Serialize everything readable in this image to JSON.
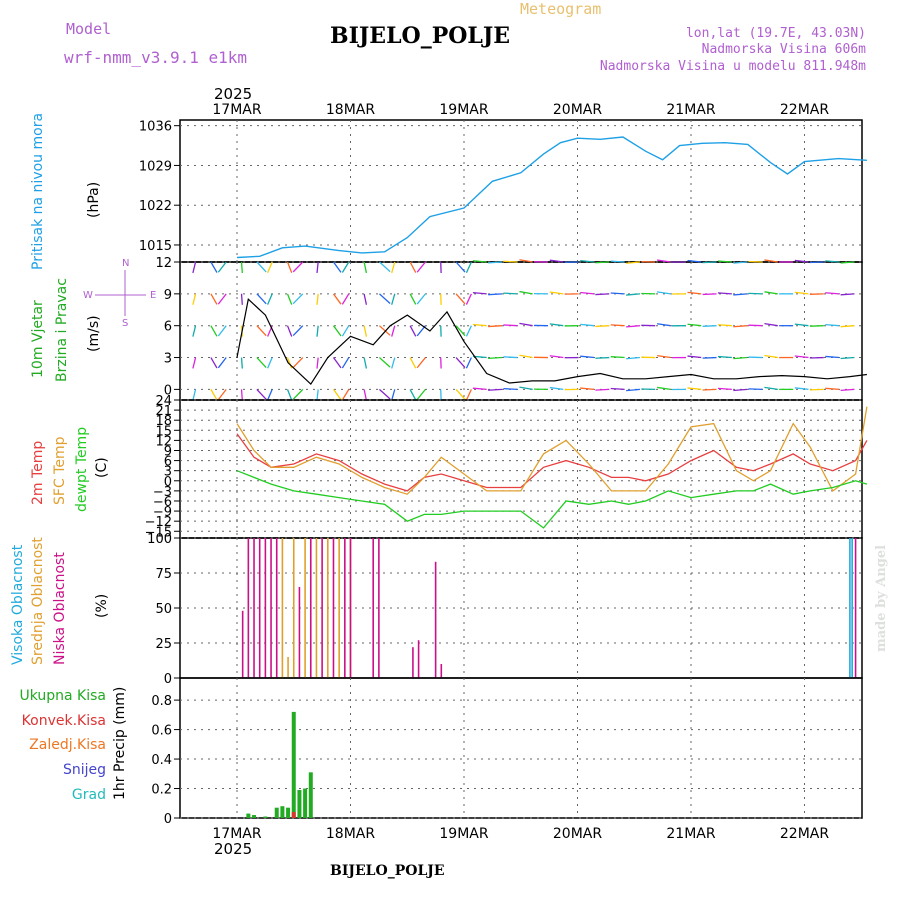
{
  "header": {
    "model_label": "Model",
    "model_name": "wrf-nmm_v3.9.1 e1km",
    "meteogram_label": "Meteogram",
    "title": "BIJELO_POLJE",
    "lonlat": "lon,lat (19.7E, 43.03N)",
    "elevation": "Nadmorska Visina 606m",
    "model_elevation": "Nadmorska Visina u modelu 811.948m",
    "footer_title": "BIJELO_POLJE",
    "watermark": "made by Angel"
  },
  "colors": {
    "pressure": "#1ea0e6",
    "temp2m": "#e84040",
    "sfc_temp": "#e0a030",
    "dewpoint": "#22cc22",
    "high_cloud": "#22aadd",
    "mid_cloud": "#e0a030",
    "low_cloud": "#cc1188",
    "total_precip": "#22aa22",
    "conv_precip": "#dd3333",
    "frz_precip": "#ee7722",
    "snow": "#4444cc",
    "hail": "#22bbbb",
    "wind_speed": "#000000",
    "gust": "#e03030"
  },
  "time_axis": {
    "year": "2025",
    "days": [
      "17MAR",
      "18MAR",
      "19MAR",
      "20MAR",
      "21MAR",
      "22MAR"
    ]
  },
  "panels": {
    "pressure": {
      "label": "Pritisak na nivou mora",
      "unit": "(hPa)"
    },
    "wind": {
      "label1": "10m Vjetar",
      "label2": "Brzina i Pravac",
      "unit": "(m/s)",
      "compass": {
        "n": "N",
        "w": "W",
        "e": "E",
        "s": "S"
      }
    },
    "temp": {
      "label1": "2m Temp",
      "label2": "SFC Temp",
      "label3": "dewpt Temp",
      "unit": "(C)"
    },
    "cloud": {
      "label1": "Visoka Oblacnost",
      "label2": "Srednja Oblacnost",
      "label3": "Niska Oblacnost",
      "unit": "(%)"
    },
    "precip": {
      "legend": [
        "Ukupna Kisa",
        "Konvek.Kisa",
        "Zaledj.Kisa",
        "Snijeg",
        "Grad"
      ],
      "unit": "1hr Precip (mm)"
    }
  },
  "chart_data": [
    {
      "type": "line",
      "name": "pressure",
      "x_days": [
        0,
        0.2,
        0.4,
        0.6,
        0.9,
        1.1,
        1.3,
        1.5,
        1.7,
        2.0,
        2.25,
        2.5,
        2.7,
        2.85,
        3.0,
        3.2,
        3.4,
        3.6,
        3.75,
        3.9,
        4.1,
        4.3,
        4.5,
        4.7,
        4.85,
        5.0,
        5.3,
        5.55
      ],
      "y": [
        1012.8,
        1013.0,
        1014.5,
        1014.8,
        1014.0,
        1013.6,
        1013.8,
        1016.3,
        1020.0,
        1021.5,
        1026.2,
        1027.7,
        1031.0,
        1033.0,
        1033.8,
        1033.6,
        1034.0,
        1031.5,
        1030.0,
        1032.5,
        1032.9,
        1033.0,
        1032.7,
        1029.5,
        1027.5,
        1029.7,
        1030.2,
        1029.9
      ],
      "ylim": [
        1012,
        1037
      ],
      "yticks": [
        1015,
        1022,
        1029,
        1036
      ]
    },
    {
      "type": "line",
      "name": "wind",
      "x_days": [
        0,
        0.1,
        0.25,
        0.45,
        0.65,
        0.8,
        1.0,
        1.2,
        1.35,
        1.5,
        1.7,
        1.85,
        2.0,
        2.2,
        2.4,
        2.6,
        2.8,
        3.0,
        3.2,
        3.4,
        3.6,
        3.8,
        4.0,
        4.2,
        4.4,
        4.6,
        4.8,
        5.0,
        5.2,
        5.4,
        5.55
      ],
      "y": [
        3.0,
        8.5,
        7.0,
        2.5,
        0.5,
        3.0,
        5.0,
        4.2,
        6.0,
        7.0,
        5.5,
        7.3,
        4.5,
        1.5,
        0.6,
        0.8,
        0.8,
        1.2,
        1.5,
        1.0,
        1.0,
        1.2,
        1.4,
        1.0,
        1.0,
        1.2,
        1.3,
        1.2,
        1.0,
        1.2,
        1.4
      ],
      "ylim": [
        -1,
        12
      ],
      "yticks": [
        0,
        3,
        6,
        9,
        12
      ]
    },
    {
      "type": "line",
      "name": "temperature",
      "x_days": [
        0,
        0.15,
        0.3,
        0.5,
        0.7,
        0.9,
        1.1,
        1.3,
        1.5,
        1.65,
        1.8,
        2.0,
        2.2,
        2.35,
        2.5,
        2.7,
        2.9,
        3.1,
        3.3,
        3.45,
        3.6,
        3.8,
        4.0,
        4.2,
        4.4,
        4.55,
        4.7,
        4.9,
        5.05,
        5.25,
        5.45,
        5.55
      ],
      "series": [
        {
          "name": "2m Temp",
          "values": [
            14,
            7,
            4,
            5,
            8,
            6,
            2,
            -1,
            -3,
            1,
            2,
            0,
            -2,
            -2,
            -2,
            4,
            6,
            4,
            1,
            1,
            0,
            2,
            6,
            9,
            4,
            3,
            5,
            8,
            5,
            3,
            6,
            12
          ]
        },
        {
          "name": "SFC Temp",
          "values": [
            17,
            9,
            4,
            4,
            7,
            5,
            1,
            -2,
            -4,
            1,
            7,
            2,
            -3,
            -3,
            -3,
            8,
            12,
            5,
            -3,
            -3,
            -3,
            5,
            16,
            17,
            3,
            0,
            3,
            17,
            10,
            -3,
            2,
            22
          ]
        },
        {
          "name": "dewpt Temp",
          "values": [
            3,
            1,
            -1,
            -3,
            -4,
            -5,
            -6,
            -7,
            -12,
            -10,
            -10,
            -9,
            -9,
            -9,
            -9,
            -14,
            -6,
            -7,
            -6,
            -7,
            -6,
            -3,
            -5,
            -4,
            -3,
            -3,
            -1,
            -4,
            -3,
            -2,
            0,
            -1
          ]
        }
      ],
      "ylim": [
        -17,
        24
      ],
      "yticks": [
        -15,
        -12,
        -9,
        -6,
        -3,
        0,
        3,
        6,
        9,
        12,
        15,
        18,
        21,
        24
      ]
    },
    {
      "type": "bar",
      "name": "cloud cover",
      "series": [
        {
          "name": "Visoka Oblacnost",
          "bars": [
            [
              5.4,
              100
            ],
            [
              5.42,
              100
            ]
          ]
        },
        {
          "name": "Srednja Oblacnost",
          "bars": [
            [
              0.4,
              100
            ],
            [
              0.5,
              100
            ],
            [
              0.6,
              100
            ],
            [
              0.7,
              100
            ],
            [
              0.8,
              100
            ],
            [
              0.9,
              100
            ],
            [
              1.0,
              100
            ],
            [
              0.45,
              15
            ]
          ]
        },
        {
          "name": "Niska Oblacnost",
          "bars": [
            [
              0.05,
              48
            ],
            [
              0.1,
              100
            ],
            [
              0.15,
              100
            ],
            [
              0.2,
              100
            ],
            [
              0.25,
              100
            ],
            [
              0.3,
              100
            ],
            [
              0.35,
              100
            ],
            [
              0.55,
              65
            ],
            [
              0.65,
              100
            ],
            [
              0.75,
              100
            ],
            [
              0.85,
              100
            ],
            [
              0.95,
              100
            ],
            [
              1.0,
              100
            ],
            [
              1.2,
              100
            ],
            [
              1.25,
              100
            ],
            [
              1.55,
              22
            ],
            [
              1.6,
              27
            ],
            [
              1.75,
              83
            ],
            [
              1.8,
              10
            ],
            [
              5.45,
              100
            ]
          ]
        }
      ],
      "ylim": [
        0,
        100
      ],
      "yticks": [
        0,
        25,
        50,
        75,
        100
      ]
    },
    {
      "type": "bar",
      "name": "1hr precipitation",
      "series": [
        {
          "name": "Ukupna Kisa",
          "bars": [
            [
              0.1,
              0.03
            ],
            [
              0.15,
              0.02
            ],
            [
              0.25,
              0.01
            ],
            [
              0.35,
              0.07
            ],
            [
              0.4,
              0.08
            ],
            [
              0.45,
              0.07
            ],
            [
              0.5,
              0.72
            ],
            [
              0.55,
              0.19
            ],
            [
              0.6,
              0.2
            ],
            [
              0.65,
              0.31
            ]
          ]
        },
        {
          "name": "Konvek.Kisa",
          "bars": [
            [
              0.5,
              0.04
            ]
          ]
        }
      ],
      "ylim": [
        0,
        0.95
      ],
      "yticks": [
        0,
        0.2,
        0.4,
        0.6,
        0.8
      ]
    }
  ]
}
